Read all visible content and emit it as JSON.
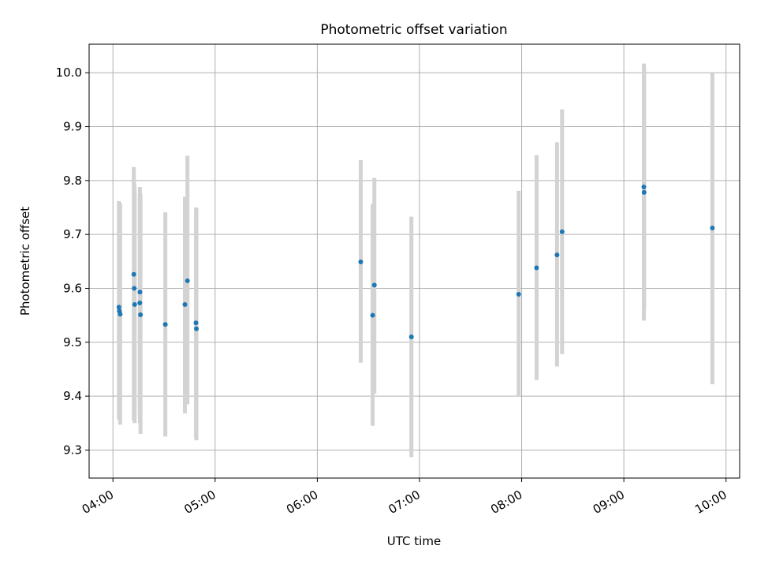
{
  "chart_data": {
    "type": "scatter",
    "title": "Photometric offset variation",
    "xlabel": "UTC time",
    "ylabel": "Photometric offset",
    "x_unit": "time of day (UTC)",
    "xlim": [
      "03:46",
      "10:08"
    ],
    "ylim": [
      9.248,
      10.053
    ],
    "x_ticks": [
      "04:00",
      "05:00",
      "06:00",
      "07:00",
      "08:00",
      "09:00",
      "10:00"
    ],
    "y_ticks": [
      "9.3",
      "9.4",
      "9.5",
      "9.6",
      "9.7",
      "9.8",
      "9.9",
      "10.0"
    ],
    "grid": true,
    "colors": {
      "point": "#1f77b4",
      "errorbar": "#d3d3d3",
      "grid": "#b0b0b0"
    },
    "points": [
      {
        "x": "04:03:30",
        "y": 9.565,
        "ylow": 9.358,
        "yhigh": 9.762
      },
      {
        "x": "04:03:45",
        "y": 9.558,
        "ylow": 9.356,
        "yhigh": 9.76
      },
      {
        "x": "04:04:15",
        "y": 9.552,
        "ylow": 9.347,
        "yhigh": 9.757
      },
      {
        "x": "04:12:15",
        "y": 9.626,
        "ylow": 9.355,
        "yhigh": 9.825
      },
      {
        "x": "04:12:30",
        "y": 9.6,
        "ylow": 9.375,
        "yhigh": 9.795
      },
      {
        "x": "04:12:45",
        "y": 9.57,
        "ylow": 9.35,
        "yhigh": 9.787
      },
      {
        "x": "04:15:45",
        "y": 9.573,
        "ylow": 9.365,
        "yhigh": 9.775
      },
      {
        "x": "04:15:50",
        "y": 9.593,
        "ylow": 9.35,
        "yhigh": 9.788
      },
      {
        "x": "04:16:10",
        "y": 9.551,
        "ylow": 9.33,
        "yhigh": 9.775
      },
      {
        "x": "04:30:45",
        "y": 9.533,
        "ylow": 9.325,
        "yhigh": 9.741
      },
      {
        "x": "04:42:15",
        "y": 9.57,
        "ylow": 9.368,
        "yhigh": 9.77
      },
      {
        "x": "04:43:45",
        "y": 9.614,
        "ylow": 9.385,
        "yhigh": 9.846
      },
      {
        "x": "04:48:45",
        "y": 9.536,
        "ylow": 9.322,
        "yhigh": 9.75
      },
      {
        "x": "04:49:00",
        "y": 9.525,
        "ylow": 9.318,
        "yhigh": 9.749
      },
      {
        "x": "06:25:30",
        "y": 9.649,
        "ylow": 9.462,
        "yhigh": 9.838
      },
      {
        "x": "06:32:30",
        "y": 9.55,
        "ylow": 9.345,
        "yhigh": 9.757
      },
      {
        "x": "06:33:30",
        "y": 9.606,
        "ylow": 9.405,
        "yhigh": 9.805
      },
      {
        "x": "06:55:15",
        "y": 9.51,
        "ylow": 9.287,
        "yhigh": 9.733
      },
      {
        "x": "07:58:15",
        "y": 9.589,
        "ylow": 9.4,
        "yhigh": 9.781
      },
      {
        "x": "08:08:45",
        "y": 9.638,
        "ylow": 9.43,
        "yhigh": 9.847
      },
      {
        "x": "08:20:45",
        "y": 9.662,
        "ylow": 9.455,
        "yhigh": 9.871
      },
      {
        "x": "08:23:45",
        "y": 9.705,
        "ylow": 9.478,
        "yhigh": 9.932
      },
      {
        "x": "09:11:45",
        "y": 9.788,
        "ylow": 9.54,
        "yhigh": 10.017
      },
      {
        "x": "09:11:55",
        "y": 9.778,
        "ylow": 9.56,
        "yhigh": 10.01
      },
      {
        "x": "09:52:00",
        "y": 9.712,
        "ylow": 9.422,
        "yhigh": 9.999
      }
    ]
  }
}
